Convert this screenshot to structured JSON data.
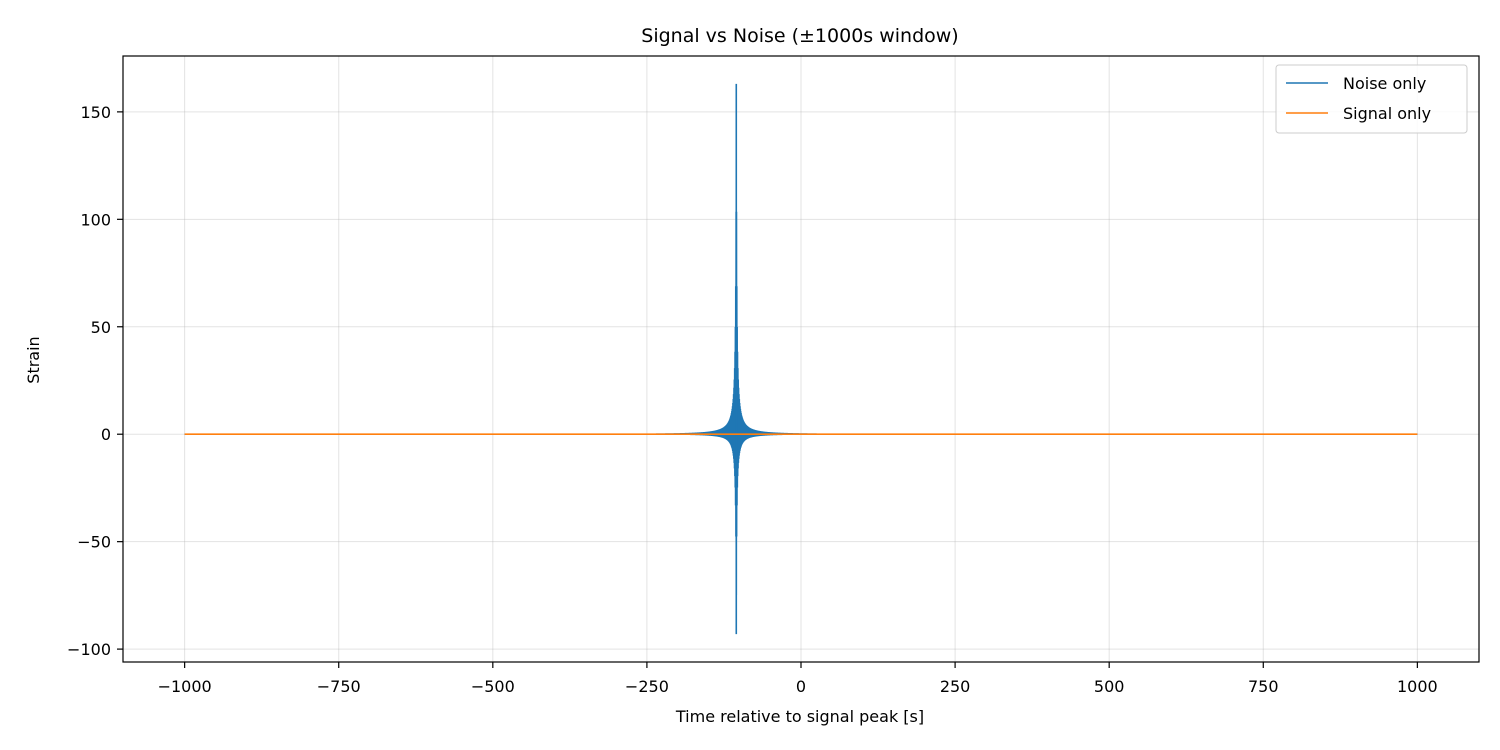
{
  "chart_data": {
    "type": "line",
    "title": "Signal vs Noise (±1000s window)",
    "xlabel": "Time relative to signal peak [s]",
    "ylabel": "Strain",
    "xlim": [
      -1100,
      1100
    ],
    "ylim": [
      -106,
      176
    ],
    "x_ticks": [
      -1000,
      -750,
      -500,
      -250,
      0,
      250,
      500,
      750,
      1000
    ],
    "x_tick_labels": [
      "−1000",
      "−750",
      "−500",
      "−250",
      "0",
      "250",
      "500",
      "750",
      "1000"
    ],
    "y_ticks": [
      -100,
      -50,
      0,
      50,
      100,
      150
    ],
    "y_tick_labels": [
      "−100",
      "−50",
      "0",
      "50",
      "100",
      "150"
    ],
    "grid": true,
    "legend_position": "top-right",
    "series": [
      {
        "name": "Noise only",
        "color": "#1f77b4",
        "x_range": [
          -1000,
          1000
        ],
        "baseline": 0,
        "burst": {
          "center": -105,
          "peak_max": 163,
          "peak_min": -93
        }
      },
      {
        "name": "Signal only",
        "color": "#ff7f0e",
        "x_range": [
          -1000,
          1000
        ],
        "baseline": 0
      }
    ]
  }
}
